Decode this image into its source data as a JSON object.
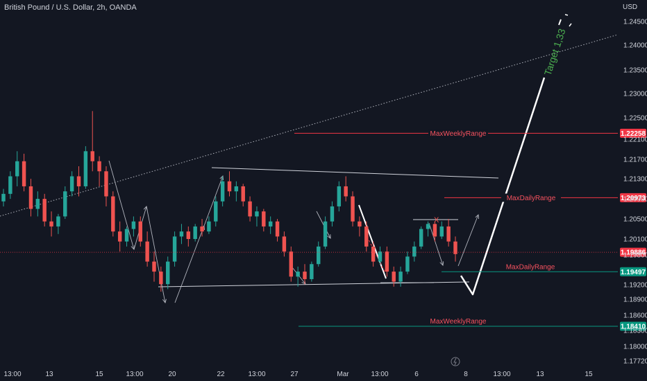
{
  "header": {
    "title": "British Pound / U.S. Dollar, 2h, OANDA",
    "currency": "USD"
  },
  "chart_data": {
    "type": "candlestick",
    "price_axis": {
      "ticks": [
        "1.24500",
        "1.24000",
        "1.23500",
        "1.23000",
        "1.22500",
        "1.22100",
        "1.21700",
        "1.21300",
        "1.20900",
        "1.20500",
        "1.20100",
        "1.19800",
        "1.19200",
        "1.18900",
        "1.18600",
        "1.18300",
        "1.18000",
        "1.17720"
      ],
      "range": [
        1.176,
        1.247
      ]
    },
    "time_axis": {
      "ticks": [
        "13:00",
        "13",
        "15",
        "13:00",
        "20",
        "22",
        "13:00",
        "27",
        "Mar",
        "13:00",
        "6",
        "8",
        "13:00",
        "13",
        "15"
      ]
    },
    "colors": {
      "up": "#26a69a",
      "down": "#ef5350",
      "resistance": "#f23645",
      "support": "#089981",
      "last_price": "#f23645",
      "target_text": "#4caf50"
    },
    "last_price": {
      "label": "1.19886",
      "value": 1.19886
    },
    "levels": [
      {
        "label": "MaxWeeklyRange",
        "value": 1.22258,
        "badge": "1.22258",
        "kind": "resistance"
      },
      {
        "label": "MaxDailyRange",
        "value": 1.20973,
        "badge": "1.20973",
        "kind": "resistance"
      },
      {
        "label": "MaxDailyRange",
        "value": 1.19497,
        "badge": "1.19497",
        "kind": "support"
      },
      {
        "label": "MaxWeeklyRange",
        "value": 1.1841,
        "badge": "1.18410",
        "kind": "support"
      }
    ],
    "annotations": {
      "target": "Target 1,33",
      "cross_mark": "X"
    },
    "series": [
      {
        "name": "",
        "ohlc_points": [
          [
            1.209,
            1.2115,
            1.208,
            1.2105
          ],
          [
            1.2105,
            1.215,
            1.2095,
            1.214
          ],
          [
            1.214,
            1.219,
            1.212,
            1.217
          ],
          [
            1.217,
            1.2185,
            1.211,
            1.212
          ],
          [
            1.212,
            1.2135,
            1.206,
            1.2075
          ],
          [
            1.2075,
            1.211,
            1.206,
            1.2095
          ],
          [
            1.2095,
            1.2105,
            1.204,
            1.205
          ],
          [
            1.205,
            1.207,
            1.202,
            1.204
          ],
          [
            1.204,
            1.2065,
            1.2025,
            1.206
          ],
          [
            1.206,
            1.212,
            1.2055,
            1.211
          ],
          [
            1.211,
            1.215,
            1.21,
            1.214
          ],
          [
            1.214,
            1.216,
            1.21,
            1.212
          ],
          [
            1.212,
            1.22,
            1.2115,
            1.219
          ],
          [
            1.219,
            1.227,
            1.215,
            1.217
          ],
          [
            1.217,
            1.218,
            1.212,
            1.215
          ],
          [
            1.215,
            1.216,
            1.208,
            1.21
          ],
          [
            1.21,
            1.211,
            1.202,
            1.203
          ],
          [
            1.203,
            1.205,
            1.199,
            1.201
          ],
          [
            1.201,
            1.204,
            1.2,
            1.2035
          ],
          [
            1.2035,
            1.206,
            1.202,
            1.205
          ],
          [
            1.205,
            1.206,
            1.2,
            1.201
          ],
          [
            1.201,
            1.203,
            1.196,
            1.197
          ],
          [
            1.197,
            1.199,
            1.193,
            1.195
          ],
          [
            1.195,
            1.196,
            1.191,
            1.1925
          ],
          [
            1.1925,
            1.198,
            1.1915,
            1.197
          ],
          [
            1.197,
            1.203,
            1.196,
            1.202
          ],
          [
            1.202,
            1.2045,
            1.2005,
            1.203
          ],
          [
            1.203,
            1.204,
            1.2,
            1.2015
          ],
          [
            1.2015,
            1.2045,
            1.201,
            1.204
          ],
          [
            1.204,
            1.2055,
            1.202,
            1.203
          ],
          [
            1.203,
            1.206,
            1.2025,
            1.205
          ],
          [
            1.205,
            1.21,
            1.204,
            1.209
          ],
          [
            1.209,
            1.214,
            1.208,
            1.213
          ],
          [
            1.213,
            1.215,
            1.21,
            1.211
          ],
          [
            1.211,
            1.213,
            1.209,
            1.212
          ],
          [
            1.212,
            1.2125,
            1.208,
            1.209
          ],
          [
            1.209,
            1.21,
            1.205,
            1.206
          ],
          [
            1.206,
            1.208,
            1.204,
            1.207
          ],
          [
            1.207,
            1.2075,
            1.203,
            1.204
          ],
          [
            1.204,
            1.206,
            1.2025,
            1.205
          ],
          [
            1.205,
            1.2055,
            1.201,
            1.202
          ],
          [
            1.202,
            1.203,
            1.198,
            1.199
          ],
          [
            1.199,
            1.2,
            1.193,
            1.194
          ],
          [
            1.194,
            1.196,
            1.192,
            1.195
          ],
          [
            1.195,
            1.1965,
            1.1925,
            1.1935
          ],
          [
            1.1935,
            1.197,
            1.193,
            1.1965
          ],
          [
            1.1965,
            1.201,
            1.196,
            1.2
          ],
          [
            1.2,
            1.206,
            1.1995,
            1.205
          ],
          [
            1.205,
            1.209,
            1.204,
            1.208
          ],
          [
            1.208,
            1.213,
            1.207,
            1.212
          ],
          [
            1.212,
            1.214,
            1.209,
            1.21
          ],
          [
            1.21,
            1.211,
            1.204,
            1.205
          ],
          [
            1.205,
            1.206,
            1.202,
            1.204
          ],
          [
            1.204,
            1.205,
            1.199,
            1.2
          ],
          [
            1.2,
            1.201,
            1.196,
            1.197
          ],
          [
            1.197,
            1.2,
            1.1965,
            1.199
          ],
          [
            1.199,
            1.2,
            1.194,
            1.195
          ],
          [
            1.195,
            1.196,
            1.192,
            1.193
          ],
          [
            1.193,
            1.196,
            1.192,
            1.195
          ],
          [
            1.195,
            1.199,
            1.1945,
            1.198
          ],
          [
            1.198,
            1.201,
            1.197,
            1.2
          ],
          [
            1.2,
            1.204,
            1.1995,
            1.2035
          ],
          [
            1.2035,
            1.205,
            1.202,
            1.2045
          ],
          [
            1.2045,
            1.205,
            1.201,
            1.202
          ],
          [
            1.202,
            1.205,
            1.2015,
            1.204
          ],
          [
            1.204,
            1.2055,
            1.2,
            1.201
          ],
          [
            1.201,
            1.202,
            1.197,
            1.1985
          ]
        ]
      }
    ]
  }
}
